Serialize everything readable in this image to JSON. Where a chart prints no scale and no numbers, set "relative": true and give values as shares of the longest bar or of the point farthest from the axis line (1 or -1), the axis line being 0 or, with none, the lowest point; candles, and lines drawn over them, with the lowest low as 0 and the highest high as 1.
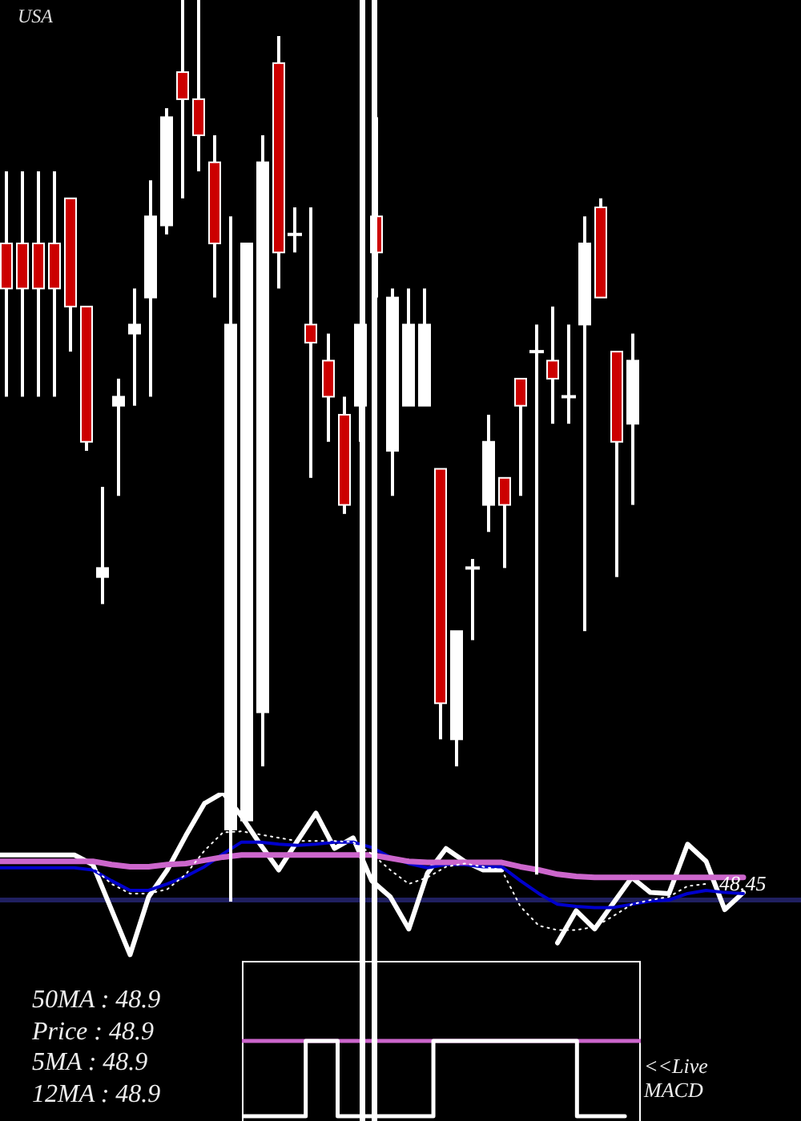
{
  "chart_data": [
    {
      "type": "candlestick",
      "title": "USA",
      "relative": true,
      "categories": [
        null,
        null,
        null,
        null,
        null,
        null,
        null,
        null,
        null,
        null,
        null,
        null,
        null,
        null,
        null,
        null,
        null,
        null,
        null,
        null,
        null,
        null,
        null,
        null,
        null,
        null,
        null,
        null,
        null,
        null,
        null,
        null,
        null,
        null,
        null,
        null,
        null,
        null,
        null,
        null
      ],
      "ohlc": [
        [
          0.73,
          0.81,
          0.56,
          0.68
        ],
        [
          0.73,
          0.81,
          0.56,
          0.68
        ],
        [
          0.73,
          0.81,
          0.56,
          0.68
        ],
        [
          0.73,
          0.81,
          0.56,
          0.68
        ],
        [
          0.78,
          0.78,
          0.61,
          0.66
        ],
        [
          0.66,
          0.66,
          0.5,
          0.51
        ],
        [
          0.36,
          0.46,
          0.33,
          0.37
        ],
        [
          0.55,
          0.58,
          0.45,
          0.56
        ],
        [
          0.63,
          0.68,
          0.55,
          0.64
        ],
        [
          0.67,
          0.8,
          0.56,
          0.76
        ],
        [
          0.75,
          0.88,
          0.74,
          0.87
        ],
        [
          0.92,
          1,
          0.78,
          0.89
        ],
        [
          0.89,
          1,
          0.81,
          0.85
        ],
        [
          0.82,
          0.85,
          0.67,
          0.73
        ],
        [
          0.08,
          0.76,
          0,
          0.64
        ],
        [
          0.09,
          0.73,
          0.09,
          0.73
        ],
        [
          0.21,
          0.85,
          0.15,
          0.82
        ],
        [
          0.93,
          0.96,
          0.68,
          0.72
        ],
        [
          0.74,
          0.77,
          0.72,
          0.74
        ],
        [
          0.64,
          0.77,
          0.47,
          0.62
        ],
        [
          0.6,
          0.63,
          0.51,
          0.56
        ],
        [
          0.54,
          0.56,
          0.43,
          0.44
        ],
        [
          0.55,
          0.64,
          0.51,
          0.64
        ],
        [
          0.76,
          0.87,
          0.67,
          0.72
        ],
        [
          0.5,
          0.68,
          0.45,
          0.67
        ],
        [
          0.55,
          0.68,
          0.55,
          0.64
        ],
        [
          0.55,
          0.68,
          0.55,
          0.64
        ],
        [
          0.48,
          0.48,
          0.18,
          0.22
        ],
        [
          0.18,
          0.3,
          0.15,
          0.3
        ],
        [
          0.37,
          0.38,
          0.29,
          0.37
        ],
        [
          0.44,
          0.54,
          0.41,
          0.51
        ],
        [
          0.47,
          0.47,
          0.37,
          0.44
        ],
        [
          0.58,
          0.58,
          0.45,
          0.55
        ],
        [
          0.61,
          0.64,
          0.03,
          0.61
        ],
        [
          0.6,
          0.66,
          0.53,
          0.58
        ],
        [
          0.56,
          0.64,
          0.53,
          0.56
        ],
        [
          0.64,
          0.76,
          0.3,
          0.73
        ],
        [
          0.77,
          0.78,
          0.67,
          0.67
        ],
        [
          0.61,
          0.61,
          0.36,
          0.51
        ],
        [
          0.53,
          0.63,
          0.44,
          0.6
        ]
      ],
      "colors": [
        "#cc0000",
        "#cc0000",
        "#cc0000",
        "#cc0000",
        "#cc0000",
        "#cc0000",
        "#ffffff",
        "#ffffff",
        "#ffffff",
        "#ffffff",
        "#ffffff",
        "#cc0000",
        "#cc0000",
        "#cc0000",
        "#ffffff",
        "#ffffff",
        "#ffffff",
        "#cc0000",
        "#ffffff",
        "#cc0000",
        "#cc0000",
        "#cc0000",
        "#ffffff",
        "#cc0000",
        "#ffffff",
        "#ffffff",
        "#ffffff",
        "#cc0000",
        "#ffffff",
        "#ffffff",
        "#ffffff",
        "#cc0000",
        "#cc0000",
        "#ffffff",
        "#cc0000",
        "#ffffff",
        "#ffffff",
        "#cc0000",
        "#cc0000",
        "#ffffff"
      ]
    },
    {
      "type": "line",
      "relative": true,
      "line_style": "solid",
      "categories": [
        null,
        null,
        null,
        null,
        null,
        null,
        null,
        null,
        null,
        null,
        null,
        null,
        null,
        null,
        null,
        null,
        null,
        null,
        null,
        null,
        null,
        null,
        null,
        null,
        null,
        null,
        null,
        null,
        null,
        null,
        null,
        null,
        null,
        null,
        null,
        null,
        null,
        null,
        null,
        null,
        null
      ],
      "series": [
        {
          "color": "#ffffff",
          "values": [
            0.42,
            0.42,
            0.42,
            0.42,
            0.42,
            0.33,
            -0.09,
            -0.51,
            0.03,
            0.28,
            0.6,
            0.9,
            1,
            0.78,
            0.52,
            0.28,
            0.55,
            0.81,
            0.48,
            0.58,
            0.18,
            0.03,
            -0.27,
            0.25,
            0.48,
            0.36,
            0.28,
            0.28,
            null,
            null,
            -0.4,
            -0.1,
            -0.27,
            -0.03,
            0.21,
            0.07,
            0.06,
            0.52,
            0.36,
            -0.09,
            0.07
          ]
        },
        {
          "color": "#0000cc",
          "values": [
            0.3,
            0.3,
            0.3,
            0.3,
            0.3,
            0.28,
            0.18,
            0.09,
            0.09,
            0.15,
            0.22,
            0.31,
            0.43,
            0.54,
            0.54,
            0.52,
            0.51,
            0.52,
            0.54,
            0.54,
            0.49,
            0.4,
            0.34,
            0.3,
            0.33,
            0.33,
            0.31,
            0.31,
            0.18,
            0.06,
            -0.04,
            -0.06,
            -0.07,
            -0.07,
            -0.04,
            -0.01,
            0,
            0.06,
            0.09,
            0.07,
            0.06
          ]
        },
        {
          "color": "#cc66cc",
          "values": [
            0.36,
            0.36,
            0.36,
            0.36,
            0.36,
            0.36,
            0.33,
            0.31,
            0.31,
            0.33,
            0.34,
            0.37,
            0.4,
            0.42,
            0.42,
            0.42,
            0.42,
            0.42,
            0.42,
            0.42,
            0.42,
            0.39,
            0.36,
            0.35,
            0.35,
            0.35,
            0.35,
            0.35,
            0.31,
            0.28,
            0.24,
            0.22,
            0.21,
            0.21,
            0.21,
            0.21,
            0.21,
            0.21,
            0.21,
            0.21,
            0.21
          ]
        },
        {
          "color": "#ffffff",
          "line_style": "dotted",
          "values": [
            null,
            null,
            null,
            null,
            null,
            0.3,
            0.15,
            0.06,
            0.06,
            0.1,
            0.24,
            0.46,
            0.63,
            0.64,
            0.61,
            0.58,
            0.55,
            0.55,
            0.55,
            0.54,
            0.43,
            0.28,
            0.15,
            0.21,
            0.31,
            0.34,
            0.31,
            0.28,
            -0.06,
            -0.24,
            -0.28,
            -0.28,
            -0.25,
            -0.15,
            -0.04,
            0,
            0.03,
            0.13,
            0.15,
            null,
            null
          ]
        }
      ],
      "ref_lines": [
        {
          "axis": "y",
          "value": 0,
          "color": "#202060"
        }
      ],
      "annotations": [
        "50MA : 48.9",
        "Price : 48.9",
        "5MA : 48.9",
        "12MA : 48.9",
        "48.45"
      ]
    },
    {
      "type": "step",
      "relative": true,
      "categories": [
        null,
        null,
        null,
        null,
        null,
        null,
        null,
        null,
        null,
        null,
        null,
        null,
        null,
        null,
        null,
        null,
        null,
        null,
        null,
        null,
        null,
        null,
        null,
        null,
        null
      ],
      "series": [
        {
          "color": "#ffffff",
          "values": [
            -1,
            -1,
            -1,
            -1,
            0,
            0,
            -1,
            -1,
            -1,
            -1,
            -1,
            -1,
            0,
            0,
            0,
            0,
            0,
            0,
            0,
            0,
            0,
            -1,
            -1,
            -1,
            -1
          ]
        }
      ],
      "ref_lines": [
        {
          "axis": "y",
          "value": 0,
          "color": "#cc66cc"
        }
      ],
      "annotations": [
        "<<Live MACD"
      ]
    }
  ]
}
